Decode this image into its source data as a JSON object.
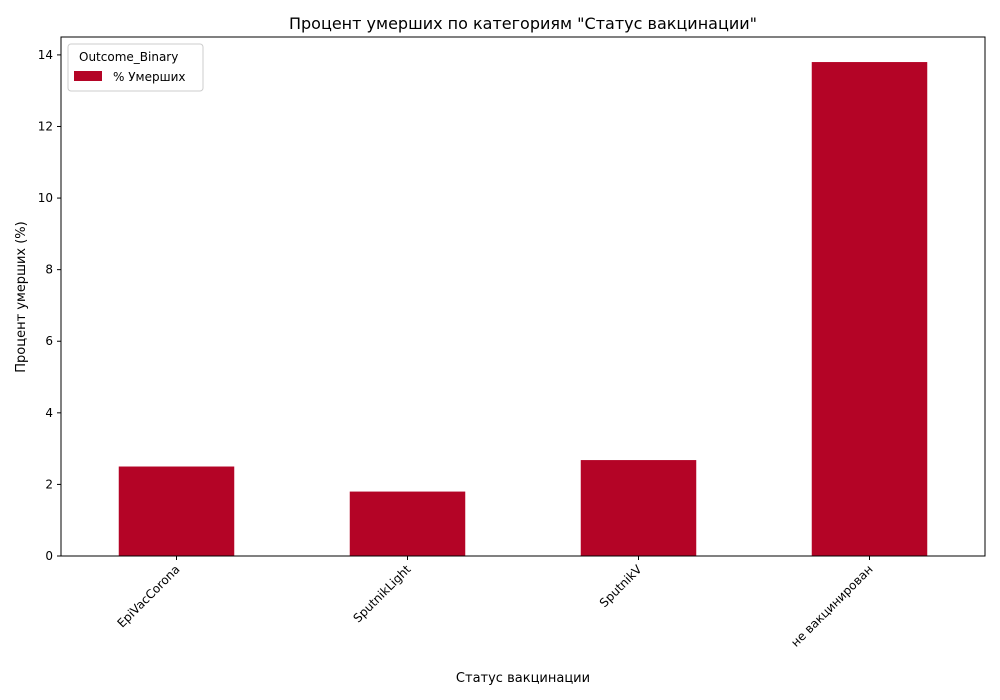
{
  "colors": {
    "bar": "#b40426",
    "axis": "#000000",
    "legend_border": "#cccccc",
    "background": "#ffffff"
  },
  "chart_data": {
    "type": "bar",
    "title": "Процент умерших по категориям \"Статус вакцинации\"",
    "xlabel": "Статус вакцинации",
    "ylabel": "Процент умерших (%)",
    "categories": [
      "EpiVacCorona",
      "SputnikLight",
      "SputnikV",
      "не вакцинирован"
    ],
    "series": [
      {
        "name": "% Умерших",
        "values": [
          2.5,
          1.8,
          2.68,
          13.8
        ]
      }
    ],
    "ylim": [
      0,
      14.5
    ],
    "yticks": [
      0,
      2,
      4,
      6,
      8,
      10,
      12,
      14
    ],
    "grid": false,
    "legend": {
      "title": "Outcome_Binary",
      "placement": "top-left"
    }
  }
}
